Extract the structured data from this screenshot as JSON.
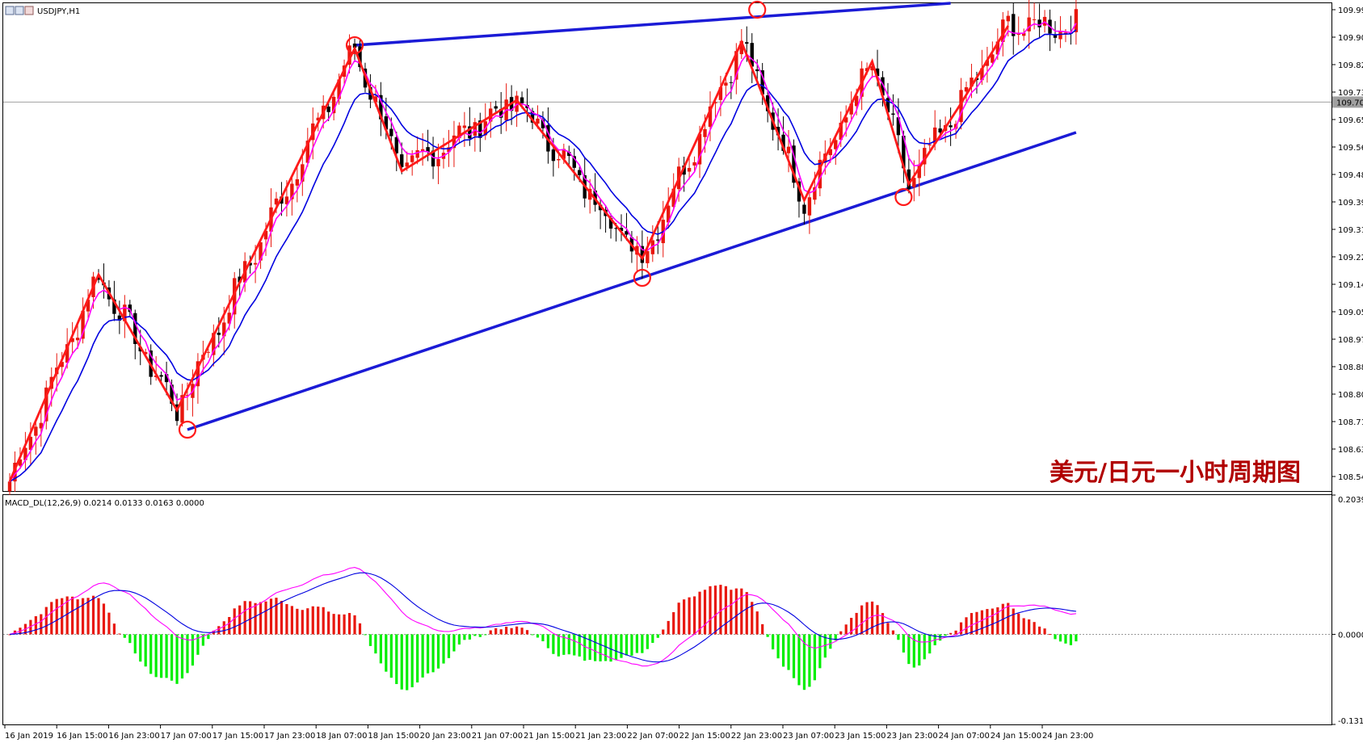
{
  "window": {
    "main_title": "USDJPY,H1",
    "indicator_title": "MACD_DL(12,26,9) 0.0214 0.0133 0.0163 0.0000",
    "annotation": "美元/日元一小时周期图"
  },
  "colors": {
    "bull": "#e8170e",
    "bear": "#000000",
    "ma_fast": "#ff00ff",
    "ma_slow": "#0000e0",
    "zigzag": "#ff1a1a",
    "channel": "#1b1bd6",
    "macd_pos": "#e8170e",
    "macd_neg": "#00ee00",
    "price_line": "#a0a0a0"
  },
  "chart_data": [
    {
      "type": "candlestick",
      "symbol": "USDJPY",
      "timeframe": "H1",
      "ylim": [
        108.5,
        110.01
      ],
      "y_ticks": [
        "109.990",
        "109.905",
        "109.820",
        "109.735",
        "109.650",
        "109.565",
        "109.480",
        "109.395",
        "109.310",
        "109.225",
        "109.140",
        "109.055",
        "108.970",
        "108.885",
        "108.800",
        "108.715",
        "108.630",
        "108.545"
      ],
      "current_price": "109.704",
      "x_ticks": [
        "16 Jan 2019",
        "16 Jan 15:00",
        "16 Jan 23:00",
        "17 Jan 07:00",
        "17 Jan 15:00",
        "17 Jan 23:00",
        "18 Jan 07:00",
        "18 Jan 15:00",
        "20 Jan 23:00",
        "21 Jan 07:00",
        "21 Jan 15:00",
        "21 Jan 23:00",
        "22 Jan 07:00",
        "22 Jan 15:00",
        "22 Jan 23:00",
        "23 Jan 07:00",
        "23 Jan 15:00",
        "23 Jan 23:00",
        "24 Jan 07:00",
        "24 Jan 15:00",
        "24 Jan 23:00"
      ],
      "zigzag": [
        {
          "bar": 0,
          "price": 108.53
        },
        {
          "bar": 17,
          "price": 109.17
        },
        {
          "bar": 32,
          "price": 108.75
        },
        {
          "bar": 66,
          "price": 109.87
        },
        {
          "bar": 75,
          "price": 109.49
        },
        {
          "bar": 97,
          "price": 109.71
        },
        {
          "bar": 121,
          "price": 109.22
        },
        {
          "bar": 140,
          "price": 109.89
        },
        {
          "bar": 152,
          "price": 109.4
        },
        {
          "bar": 165,
          "price": 109.83
        },
        {
          "bar": 172,
          "price": 109.45
        },
        {
          "bar": 182,
          "price": 109.7
        },
        {
          "bar": 191,
          "price": 109.94
        }
      ],
      "channel_upper": [
        {
          "bar": 66,
          "price": 109.88
        },
        {
          "bar": 180,
          "price": 110.01
        }
      ],
      "channel_lower": [
        {
          "bar": 34,
          "price": 108.69
        },
        {
          "bar": 204,
          "price": 109.61
        }
      ],
      "circled_points": [
        {
          "bar": 34,
          "price": 108.69
        },
        {
          "bar": 66,
          "price": 109.88
        },
        {
          "bar": 121,
          "price": 109.16
        },
        {
          "bar": 143,
          "price": 109.99
        },
        {
          "bar": 171,
          "price": 109.41
        }
      ]
    },
    {
      "type": "histogram",
      "indicator": "MACD_DL(12,26,9)",
      "ylim": [
        -0.1319,
        0.2039
      ],
      "y_ticks": [
        "0.2039",
        "0.0000",
        "-0.1319"
      ],
      "values_pos_label": "",
      "bars": []
    }
  ]
}
